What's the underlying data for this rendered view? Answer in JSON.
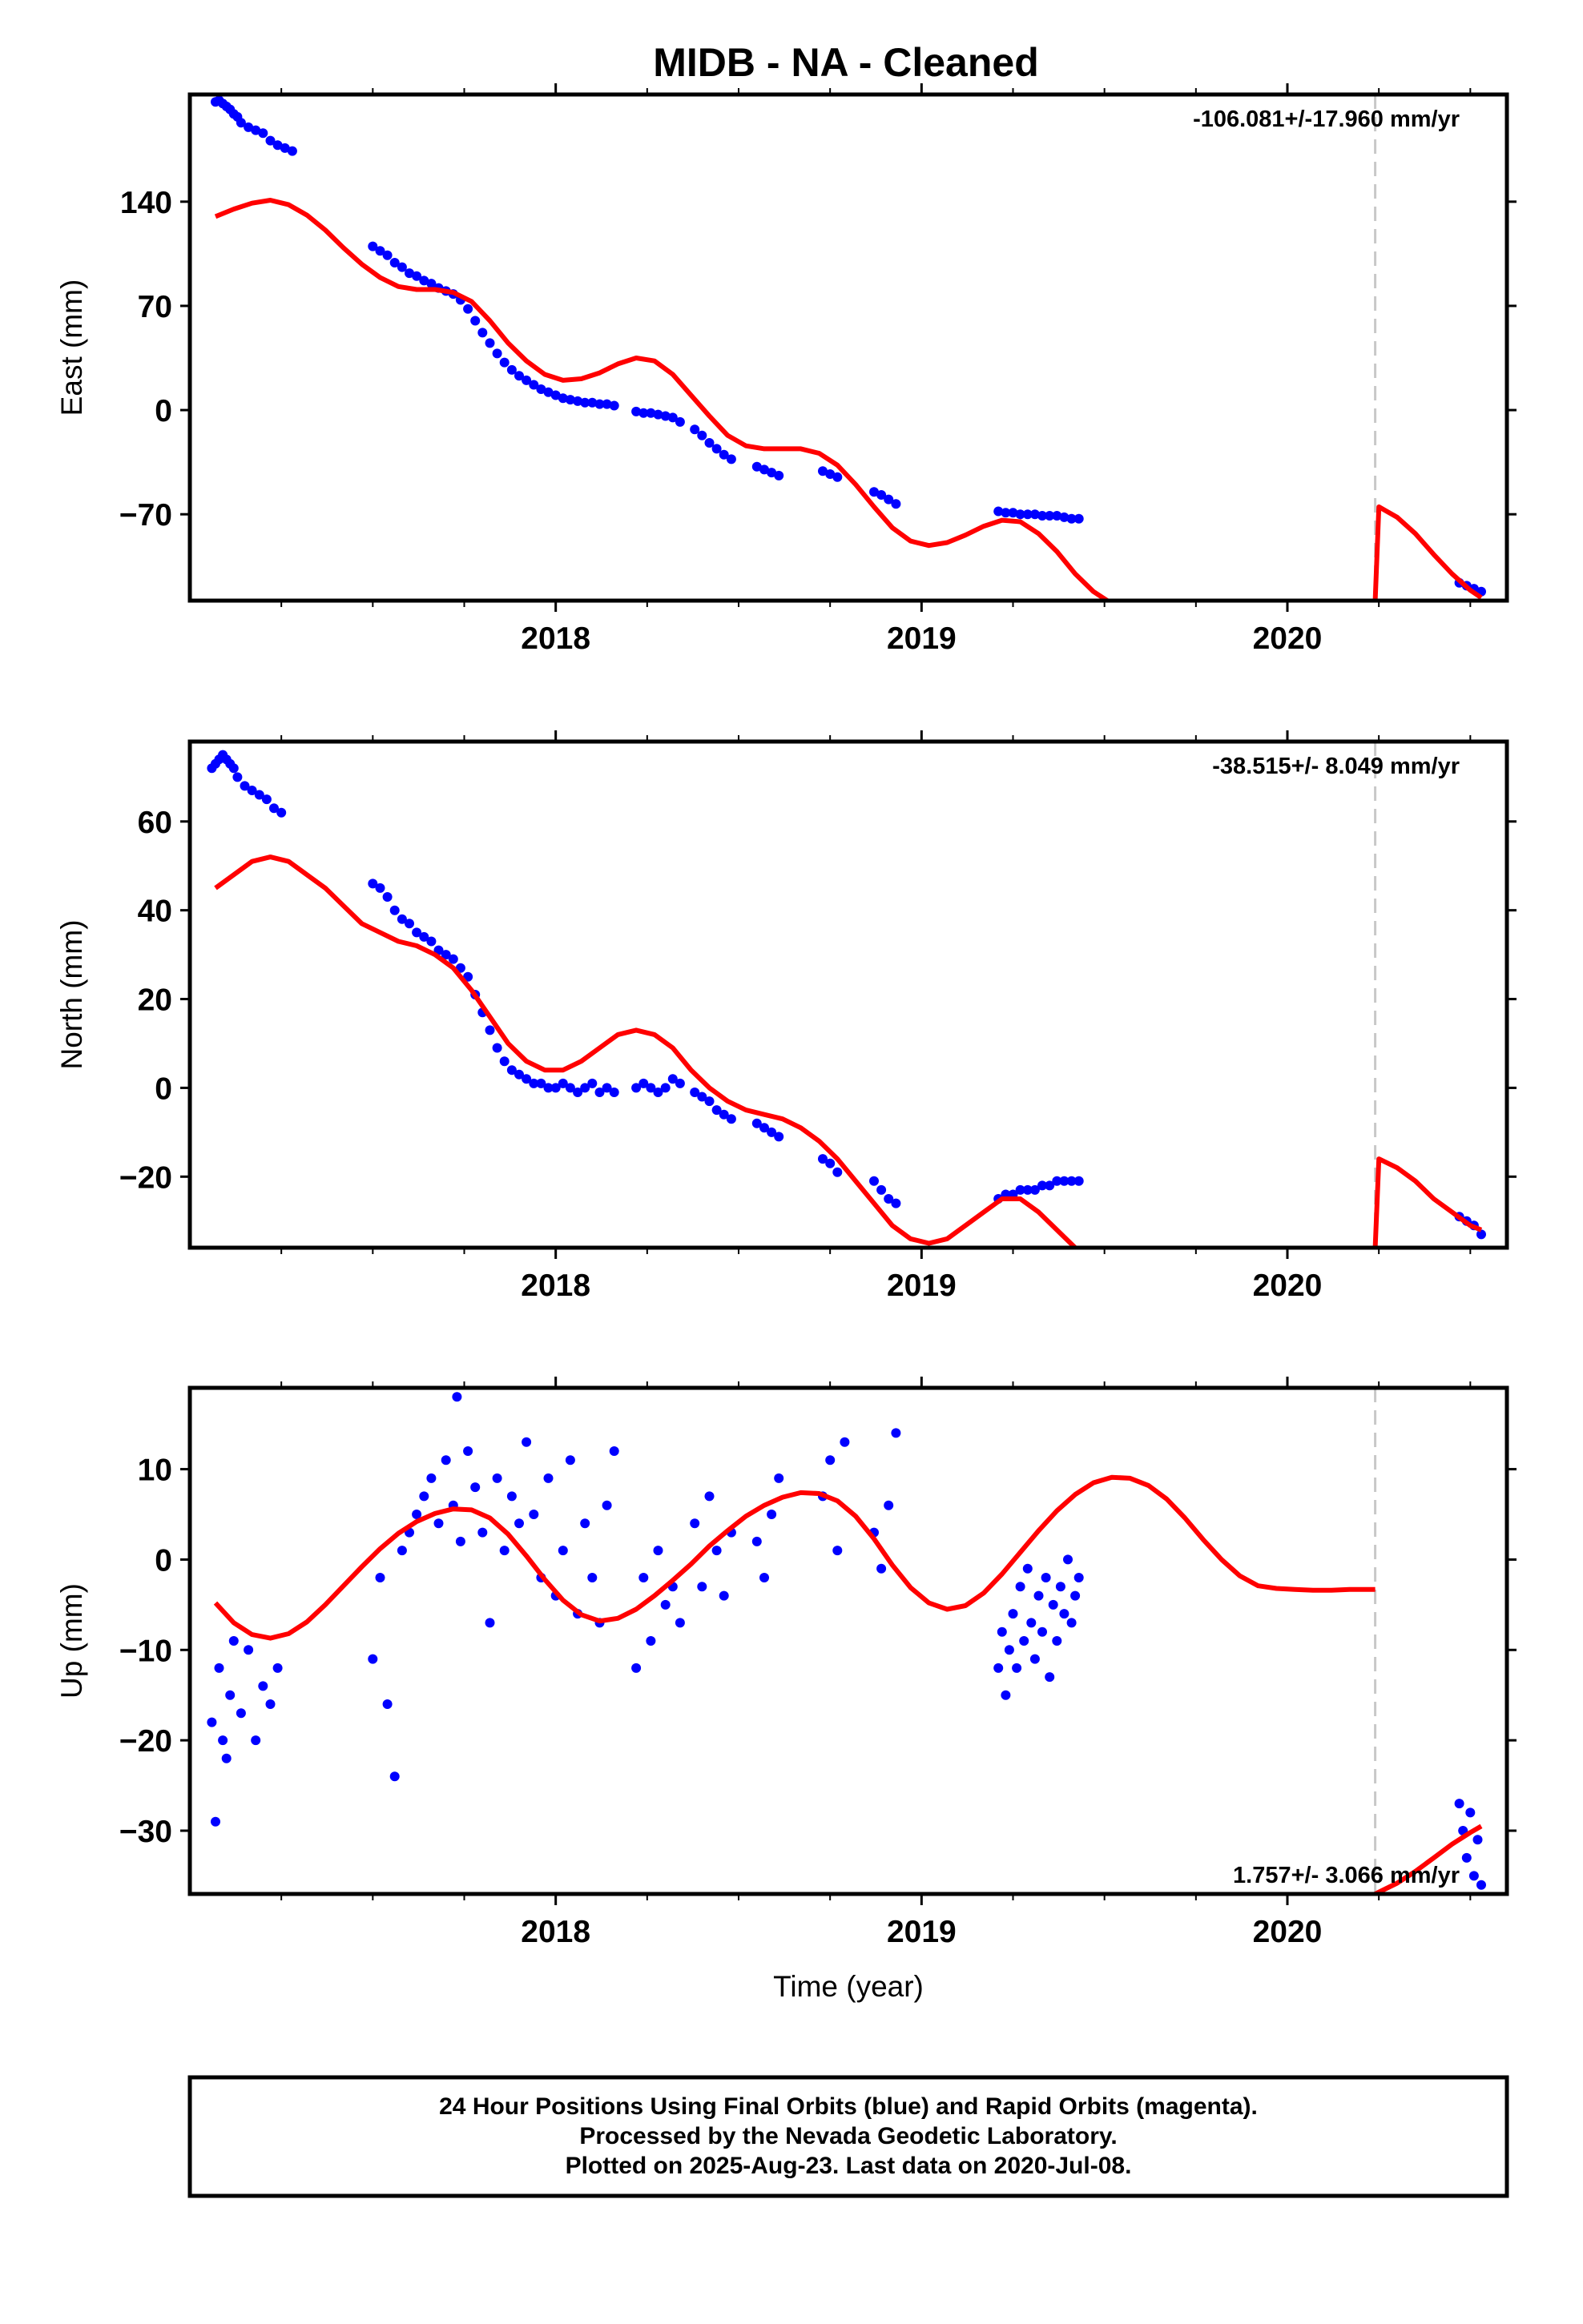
{
  "figure": {
    "title": "MIDB  - NA - Cleaned",
    "footer": {
      "line1": "24 Hour Positions Using Final Orbits (blue) and Rapid Orbits (magenta).",
      "line2": "Processed by the Nevada Geodetic Laboratory.",
      "line3": "Plotted on 2025-Aug-23. Last data on 2020-Jul-08."
    },
    "colors": {
      "data": "#0000ff",
      "model": "#ff0000",
      "break_line": "#c8c8c8",
      "frame": "#000000"
    }
  },
  "chart_data": [
    {
      "type": "scatter",
      "ylabel": "East (mm)",
      "rate_label": "-106.081+/-17.960 mm/yr",
      "xlim": [
        2017.0,
        2020.6
      ],
      "ylim": [
        -128,
        212
      ],
      "yticks": [
        140,
        70,
        0,
        -70
      ],
      "ytick_labels": [
        "140",
        "70",
        "0",
        "−70"
      ],
      "xticks": [
        2018,
        2019,
        2020
      ],
      "xtick_labels": [
        "2018",
        "2019",
        "2020"
      ],
      "break_epoch": 2020.24,
      "model_segments": [
        {
          "x": [
            2017.07,
            2017.12,
            2017.17,
            2017.22,
            2017.27,
            2017.32,
            2017.37,
            2017.42,
            2017.47,
            2017.52,
            2017.57,
            2017.62,
            2017.67,
            2017.72,
            2017.77,
            2017.82,
            2017.87,
            2017.92,
            2017.97,
            2018.02,
            2018.07,
            2018.12,
            2018.17,
            2018.22,
            2018.27,
            2018.32,
            2018.37,
            2018.42,
            2018.47,
            2018.52,
            2018.57,
            2018.62,
            2018.67,
            2018.72,
            2018.77,
            2018.82,
            2018.87,
            2018.92,
            2018.97,
            2019.02,
            2019.07,
            2019.12,
            2019.17,
            2019.22,
            2019.27,
            2019.32,
            2019.37,
            2019.42,
            2019.47,
            2019.52
          ],
          "y": [
            130,
            135,
            139,
            141,
            138,
            131,
            121,
            109,
            98,
            89,
            83,
            81,
            81,
            79,
            73,
            60,
            45,
            33,
            24,
            20,
            21,
            25,
            31,
            35,
            33,
            24,
            10,
            -4,
            -17,
            -24,
            -26,
            -26,
            -26,
            -29,
            -37,
            -50,
            -65,
            -79,
            -88,
            -91,
            -89,
            -84,
            -78,
            -74,
            -75,
            -83,
            -95,
            -110,
            -122,
            -130
          ]
        },
        {
          "x": [
            2020.24,
            2020.25,
            2020.3,
            2020.35,
            2020.4,
            2020.45,
            2020.5,
            2020.53
          ],
          "y": [
            -128,
            -65,
            -72,
            -83,
            -97,
            -110,
            -121,
            -126
          ]
        }
      ],
      "points": {
        "x": [
          2017.07,
          2017.08,
          2017.09,
          2017.1,
          2017.11,
          2017.12,
          2017.13,
          2017.14,
          2017.16,
          2017.18,
          2017.2,
          2017.22,
          2017.24,
          2017.26,
          2017.28,
          2017.5,
          2017.52,
          2017.54,
          2017.56,
          2017.58,
          2017.6,
          2017.62,
          2017.64,
          2017.66,
          2017.68,
          2017.7,
          2017.72,
          2017.74,
          2017.76,
          2017.78,
          2017.8,
          2017.82,
          2017.84,
          2017.86,
          2017.88,
          2017.9,
          2017.92,
          2017.94,
          2017.96,
          2017.98,
          2018.0,
          2018.02,
          2018.04,
          2018.06,
          2018.08,
          2018.1,
          2018.12,
          2018.14,
          2018.16,
          2018.22,
          2018.24,
          2018.26,
          2018.28,
          2018.3,
          2018.32,
          2018.34,
          2018.38,
          2018.4,
          2018.42,
          2018.44,
          2018.46,
          2018.48,
          2018.55,
          2018.57,
          2018.59,
          2018.61,
          2018.73,
          2018.75,
          2018.77,
          2018.87,
          2018.89,
          2018.91,
          2018.93,
          2019.21,
          2019.23,
          2019.25,
          2019.27,
          2019.29,
          2019.31,
          2019.33,
          2019.35,
          2019.37,
          2019.39,
          2019.41,
          2019.43,
          2020.47,
          2020.49,
          2020.51,
          2020.53
        ],
        "y": [
          207,
          208,
          206,
          204,
          202,
          199,
          197,
          193,
          190,
          188,
          186,
          181,
          178,
          176,
          174,
          110,
          107,
          104,
          99,
          96,
          92,
          90,
          87,
          85,
          82,
          80,
          78,
          74,
          68,
          60,
          52,
          45,
          38,
          32,
          27,
          23,
          20,
          17,
          14,
          12,
          10,
          8,
          7,
          6,
          5,
          5,
          4,
          4,
          3,
          -1,
          -2,
          -2,
          -3,
          -4,
          -5,
          -8,
          -13,
          -17,
          -22,
          -26,
          -30,
          -33,
          -38,
          -40,
          -42,
          -44,
          -41,
          -43,
          -45,
          -55,
          -57,
          -60,
          -63,
          -68,
          -69,
          -69,
          -70,
          -70,
          -70,
          -71,
          -71,
          -71,
          -72,
          -73,
          -73,
          -116,
          -118,
          -120,
          -122
        ]
      }
    },
    {
      "type": "scatter",
      "ylabel": "North (mm)",
      "rate_label": "-38.515+/- 8.049 mm/yr",
      "xlim": [
        2017.0,
        2020.6
      ],
      "ylim": [
        -36,
        78
      ],
      "yticks": [
        60,
        40,
        20,
        0,
        -20
      ],
      "ytick_labels": [
        "60",
        "40",
        "20",
        "0",
        "−20"
      ],
      "xticks": [
        2018,
        2019,
        2020
      ],
      "xtick_labels": [
        "2018",
        "2019",
        "2020"
      ],
      "break_epoch": 2020.24,
      "model_segments": [
        {
          "x": [
            2017.07,
            2017.12,
            2017.17,
            2017.22,
            2017.27,
            2017.32,
            2017.37,
            2017.42,
            2017.47,
            2017.52,
            2017.57,
            2017.62,
            2017.67,
            2017.72,
            2017.77,
            2017.82,
            2017.87,
            2017.92,
            2017.97,
            2018.02,
            2018.07,
            2018.12,
            2018.17,
            2018.22,
            2018.27,
            2018.32,
            2018.37,
            2018.42,
            2018.47,
            2018.52,
            2018.57,
            2018.62,
            2018.67,
            2018.72,
            2018.77,
            2018.82,
            2018.87,
            2018.92,
            2018.97,
            2019.02,
            2019.07,
            2019.12,
            2019.17,
            2019.22,
            2019.27,
            2019.32,
            2019.37,
            2019.42
          ],
          "y": [
            45,
            48,
            51,
            52,
            51,
            48,
            45,
            41,
            37,
            35,
            33,
            32,
            30,
            27,
            22,
            16,
            10,
            6,
            4,
            4,
            6,
            9,
            12,
            13,
            12,
            9,
            4,
            0,
            -3,
            -5,
            -6,
            -7,
            -9,
            -12,
            -16,
            -21,
            -26,
            -31,
            -34,
            -35,
            -34,
            -31,
            -28,
            -25,
            -25,
            -28,
            -32,
            -36
          ]
        },
        {
          "x": [
            2020.24,
            2020.25,
            2020.3,
            2020.35,
            2020.4,
            2020.45,
            2020.5,
            2020.53
          ],
          "y": [
            -36,
            -16,
            -18,
            -21,
            -25,
            -28,
            -31,
            -32
          ]
        }
      ],
      "points": {
        "x": [
          2017.06,
          2017.07,
          2017.08,
          2017.09,
          2017.1,
          2017.11,
          2017.12,
          2017.13,
          2017.15,
          2017.17,
          2017.19,
          2017.21,
          2017.23,
          2017.25,
          2017.5,
          2017.52,
          2017.54,
          2017.56,
          2017.58,
          2017.6,
          2017.62,
          2017.64,
          2017.66,
          2017.68,
          2017.7,
          2017.72,
          2017.74,
          2017.76,
          2017.78,
          2017.8,
          2017.82,
          2017.84,
          2017.86,
          2017.88,
          2017.9,
          2017.92,
          2017.94,
          2017.96,
          2017.98,
          2018.0,
          2018.02,
          2018.04,
          2018.06,
          2018.08,
          2018.1,
          2018.12,
          2018.14,
          2018.16,
          2018.22,
          2018.24,
          2018.26,
          2018.28,
          2018.3,
          2018.32,
          2018.34,
          2018.38,
          2018.4,
          2018.42,
          2018.44,
          2018.46,
          2018.48,
          2018.55,
          2018.57,
          2018.59,
          2018.61,
          2018.73,
          2018.75,
          2018.77,
          2018.87,
          2018.89,
          2018.91,
          2018.93,
          2019.21,
          2019.23,
          2019.25,
          2019.27,
          2019.29,
          2019.31,
          2019.33,
          2019.35,
          2019.37,
          2019.39,
          2019.41,
          2019.43,
          2020.47,
          2020.49,
          2020.51,
          2020.53
        ],
        "y": [
          72,
          73,
          74,
          75,
          74,
          73,
          72,
          70,
          68,
          67,
          66,
          65,
          63,
          62,
          46,
          45,
          43,
          40,
          38,
          37,
          35,
          34,
          33,
          31,
          30,
          29,
          27,
          25,
          21,
          17,
          13,
          9,
          6,
          4,
          3,
          2,
          1,
          1,
          0,
          0,
          1,
          0,
          -1,
          0,
          1,
          -1,
          0,
          -1,
          0,
          1,
          0,
          -1,
          0,
          2,
          1,
          -1,
          -2,
          -3,
          -5,
          -6,
          -7,
          -8,
          -9,
          -10,
          -11,
          -16,
          -17,
          -19,
          -21,
          -23,
          -25,
          -26,
          -25,
          -24,
          -24,
          -23,
          -23,
          -23,
          -22,
          -22,
          -21,
          -21,
          -21,
          -21,
          -29,
          -30,
          -31,
          -33
        ]
      }
    },
    {
      "type": "scatter",
      "ylabel": "Up (mm)",
      "xlabel": "Time (year)",
      "rate_label": "1.757+/- 3.066 mm/yr",
      "xlim": [
        2017.0,
        2020.6
      ],
      "ylim": [
        -37,
        19
      ],
      "yticks": [
        10,
        0,
        -10,
        -20,
        -30
      ],
      "ytick_labels": [
        "10",
        "0",
        "−10",
        "−20",
        "−30"
      ],
      "xticks": [
        2018,
        2019,
        2020
      ],
      "xtick_labels": [
        "2018",
        "2019",
        "2020"
      ],
      "break_epoch": 2020.24,
      "model_segments": [
        {
          "x": [
            2017.07,
            2017.12,
            2017.17,
            2017.22,
            2017.27,
            2017.32,
            2017.37,
            2017.42,
            2017.47,
            2017.52,
            2017.57,
            2017.62,
            2017.67,
            2017.72,
            2017.77,
            2017.82,
            2017.87,
            2017.92,
            2017.97,
            2018.02,
            2018.07,
            2018.12,
            2018.17,
            2018.22,
            2018.27,
            2018.32,
            2018.37,
            2018.42,
            2018.47,
            2018.52,
            2018.57,
            2018.62,
            2018.67,
            2018.72,
            2018.77,
            2018.82,
            2018.87,
            2018.92,
            2018.97,
            2019.02,
            2019.07,
            2019.12,
            2019.17,
            2019.22,
            2019.27,
            2019.32,
            2019.37,
            2019.42,
            2019.47,
            2019.52,
            2019.57,
            2019.62,
            2019.67,
            2019.72,
            2019.77,
            2019.82,
            2019.87,
            2019.92,
            2019.97,
            2020.02,
            2020.07,
            2020.12,
            2020.17,
            2020.22,
            2020.24
          ],
          "y": [
            -4.8,
            -7.0,
            -8.3,
            -8.7,
            -8.2,
            -6.9,
            -5.0,
            -2.9,
            -0.8,
            1.2,
            2.9,
            4.2,
            5.1,
            5.6,
            5.5,
            4.6,
            2.8,
            0.4,
            -2.2,
            -4.5,
            -6.1,
            -6.8,
            -6.5,
            -5.5,
            -4.0,
            -2.3,
            -0.5,
            1.5,
            3.2,
            4.8,
            6.0,
            6.9,
            7.4,
            7.3,
            6.5,
            4.8,
            2.3,
            -0.6,
            -3.1,
            -4.8,
            -5.5,
            -5.1,
            -3.7,
            -1.6,
            0.8,
            3.2,
            5.4,
            7.2,
            8.5,
            9.1,
            9.0,
            8.2,
            6.7,
            4.6,
            2.2,
            0.0,
            -1.8,
            -2.9,
            -3.2,
            -3.3,
            -3.4,
            -3.4,
            -3.3,
            -3.3,
            -3.3
          ]
        },
        {
          "x": [
            2020.24,
            2020.25,
            2020.3,
            2020.35,
            2020.4,
            2020.45,
            2020.5,
            2020.53
          ],
          "y": [
            -37,
            -36.8,
            -35.8,
            -34.5,
            -33.0,
            -31.5,
            -30.2,
            -29.5
          ]
        }
      ],
      "points": {
        "x": [
          2017.06,
          2017.07,
          2017.08,
          2017.09,
          2017.1,
          2017.11,
          2017.12,
          2017.14,
          2017.16,
          2017.18,
          2017.2,
          2017.22,
          2017.24,
          2017.5,
          2017.52,
          2017.54,
          2017.56,
          2017.58,
          2017.6,
          2017.62,
          2017.64,
          2017.66,
          2017.68,
          2017.7,
          2017.72,
          2017.73,
          2017.74,
          2017.76,
          2017.78,
          2017.8,
          2017.82,
          2017.84,
          2017.86,
          2017.88,
          2017.9,
          2017.92,
          2017.94,
          2017.96,
          2017.98,
          2018.0,
          2018.02,
          2018.04,
          2018.06,
          2018.08,
          2018.1,
          2018.12,
          2018.14,
          2018.16,
          2018.22,
          2018.24,
          2018.26,
          2018.28,
          2018.3,
          2018.32,
          2018.34,
          2018.38,
          2018.4,
          2018.42,
          2018.44,
          2018.46,
          2018.48,
          2018.55,
          2018.57,
          2018.59,
          2018.61,
          2018.73,
          2018.75,
          2018.77,
          2018.79,
          2018.87,
          2018.89,
          2018.91,
          2018.93,
          2019.21,
          2019.22,
          2019.23,
          2019.24,
          2019.25,
          2019.26,
          2019.27,
          2019.28,
          2019.29,
          2019.3,
          2019.31,
          2019.32,
          2019.33,
          2019.34,
          2019.35,
          2019.36,
          2019.37,
          2019.38,
          2019.39,
          2019.4,
          2019.41,
          2019.42,
          2019.43,
          2020.47,
          2020.48,
          2020.49,
          2020.5,
          2020.51,
          2020.52,
          2020.53
        ],
        "y": [
          -18,
          -29,
          -12,
          -20,
          -22,
          -15,
          -9,
          -17,
          -10,
          -20,
          -14,
          -16,
          -12,
          -11,
          -2,
          -16,
          -24,
          1,
          3,
          5,
          7,
          9,
          4,
          11,
          6,
          18,
          2,
          12,
          8,
          3,
          -7,
          9,
          1,
          7,
          4,
          13,
          5,
          -2,
          9,
          -4,
          1,
          11,
          -6,
          4,
          -2,
          -7,
          6,
          12,
          -12,
          -2,
          -9,
          1,
          -5,
          -3,
          -7,
          4,
          -3,
          7,
          1,
          -4,
          3,
          2,
          -2,
          5,
          9,
          7,
          11,
          1,
          13,
          3,
          -1,
          6,
          14,
          -12,
          -8,
          -15,
          -10,
          -6,
          -12,
          -3,
          -9,
          -1,
          -7,
          -11,
          -4,
          -8,
          -2,
          -13,
          -5,
          -9,
          -3,
          -6,
          0,
          -7,
          -4,
          -2,
          -27,
          -30,
          -33,
          -28,
          -35,
          -31,
          -36
        ]
      }
    }
  ]
}
